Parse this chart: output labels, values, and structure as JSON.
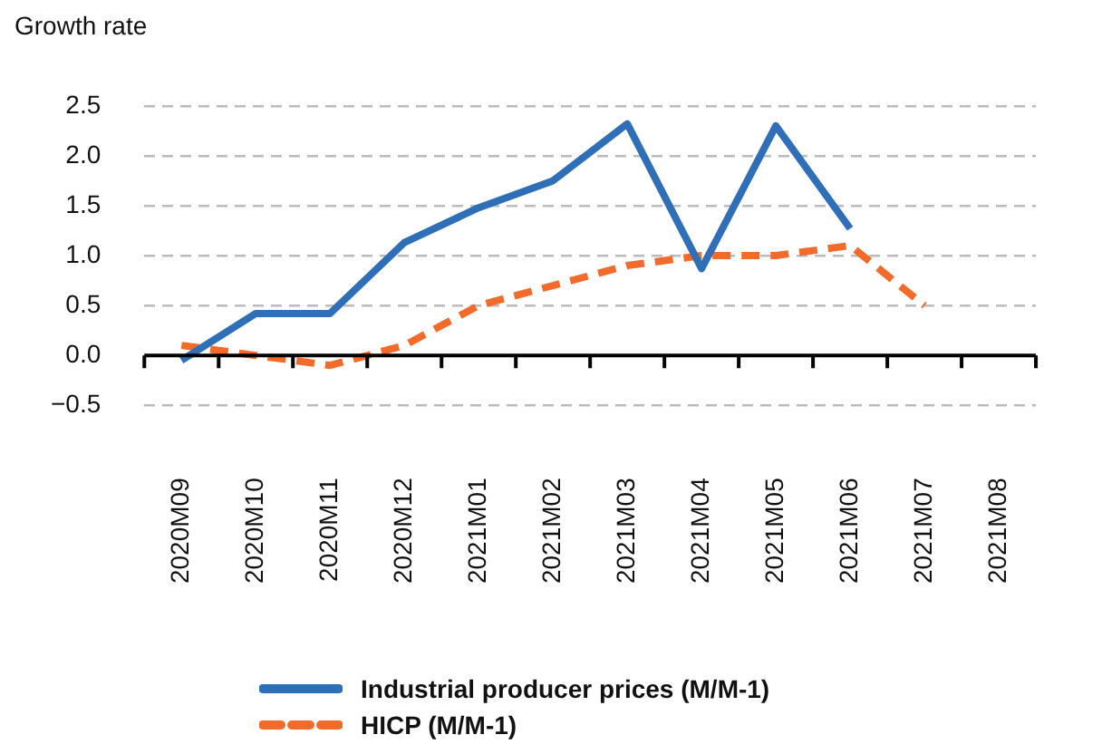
{
  "chart_data": {
    "type": "line",
    "ylabel": "Growth rate",
    "categories": [
      "2020M09",
      "2020M10",
      "2020M11",
      "2020M12",
      "2021M01",
      "2021M02",
      "2021M03",
      "2021M04",
      "2021M05",
      "2021M06",
      "2021M07",
      "2021M08"
    ],
    "series": [
      {
        "name": "Industrial producer prices (M/M-1)",
        "color": "#2e6fb7",
        "line_style": "solid",
        "values": [
          -0.05,
          0.42,
          0.42,
          1.13,
          1.48,
          1.75,
          2.32,
          0.87,
          2.3,
          1.27,
          null,
          null
        ]
      },
      {
        "name": "HICP (M/M-1)",
        "color": "#f26b2a",
        "line_style": "dashed",
        "values": [
          0.1,
          0.0,
          -0.1,
          0.1,
          0.5,
          0.7,
          0.9,
          1.0,
          1.0,
          1.1,
          0.5,
          null
        ]
      }
    ],
    "ylim": [
      -0.5,
      2.5
    ],
    "yticks": [
      {
        "value": -0.5,
        "label": "−0.5"
      },
      {
        "value": 0,
        "label": "0.0"
      },
      {
        "value": 0.5,
        "label": "0.5"
      },
      {
        "value": 1,
        "label": "1.0"
      },
      {
        "value": 1.5,
        "label": "1.5"
      },
      {
        "value": 2,
        "label": "2.0"
      },
      {
        "value": 2.5,
        "label": "2.5"
      }
    ],
    "grid": "y",
    "legend": "bottom",
    "marker": "none"
  }
}
